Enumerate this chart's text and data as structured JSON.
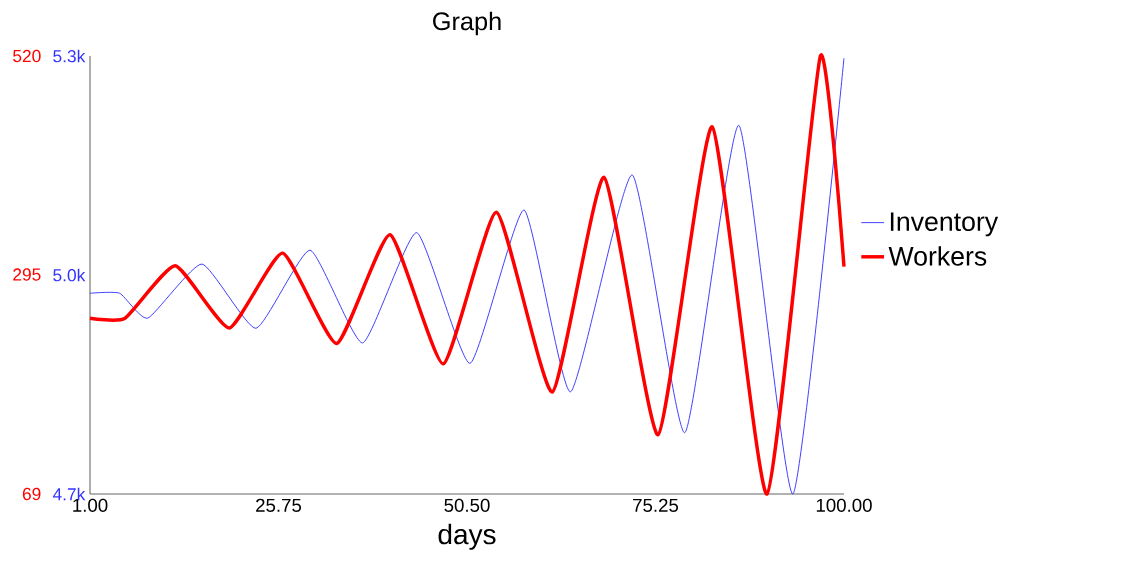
{
  "chart_data": {
    "type": "line",
    "title": "Graph",
    "xlabel": "days",
    "xlim": [
      1,
      100
    ],
    "xticks": [
      {
        "value": 1,
        "label": "1.00"
      },
      {
        "value": 25.75,
        "label": "25.75"
      },
      {
        "value": 50.5,
        "label": "50.50"
      },
      {
        "value": 75.25,
        "label": "75.25"
      },
      {
        "value": 100,
        "label": "100.00"
      }
    ],
    "ylim": [
      4700,
      5300
    ],
    "yticks": [
      {
        "value": 4700,
        "label": "4.7k"
      },
      {
        "value": 5000,
        "label": "5.0k"
      },
      {
        "value": 5300,
        "label": "5.3k"
      }
    ],
    "y2lim": [
      69,
      520
    ],
    "y2ticks": [
      69,
      295,
      520
    ],
    "legend": "right",
    "series": [
      {
        "name": "Inventory",
        "color": "#3333ff",
        "axis": "y",
        "x": [
          1,
          4.9,
          8.6,
          15.7,
          22.8,
          29.9,
          36.8,
          43.9,
          50.9,
          58.0,
          64.1,
          72.2,
          79.1,
          86.2,
          93.3,
          100
        ],
        "values": [
          4975,
          4975,
          4941,
          5015,
          4927,
          5034,
          4907,
          5058,
          4879,
          5089,
          4840,
          5137,
          4784,
          5205,
          4700,
          5297
        ]
      },
      {
        "name": "Workers",
        "color": "#ff0000",
        "axis": "y2",
        "x": [
          1,
          5.6,
          12.2,
          19.3,
          26.3,
          33.4,
          40.4,
          47.4,
          54.4,
          61.7,
          68.5,
          75.6,
          82.7,
          89.9,
          96.9,
          100
        ],
        "values": [
          250,
          250,
          304,
          240,
          317,
          224,
          336,
          203,
          359,
          174,
          395,
          130,
          447,
          69,
          520,
          303
        ]
      }
    ]
  }
}
